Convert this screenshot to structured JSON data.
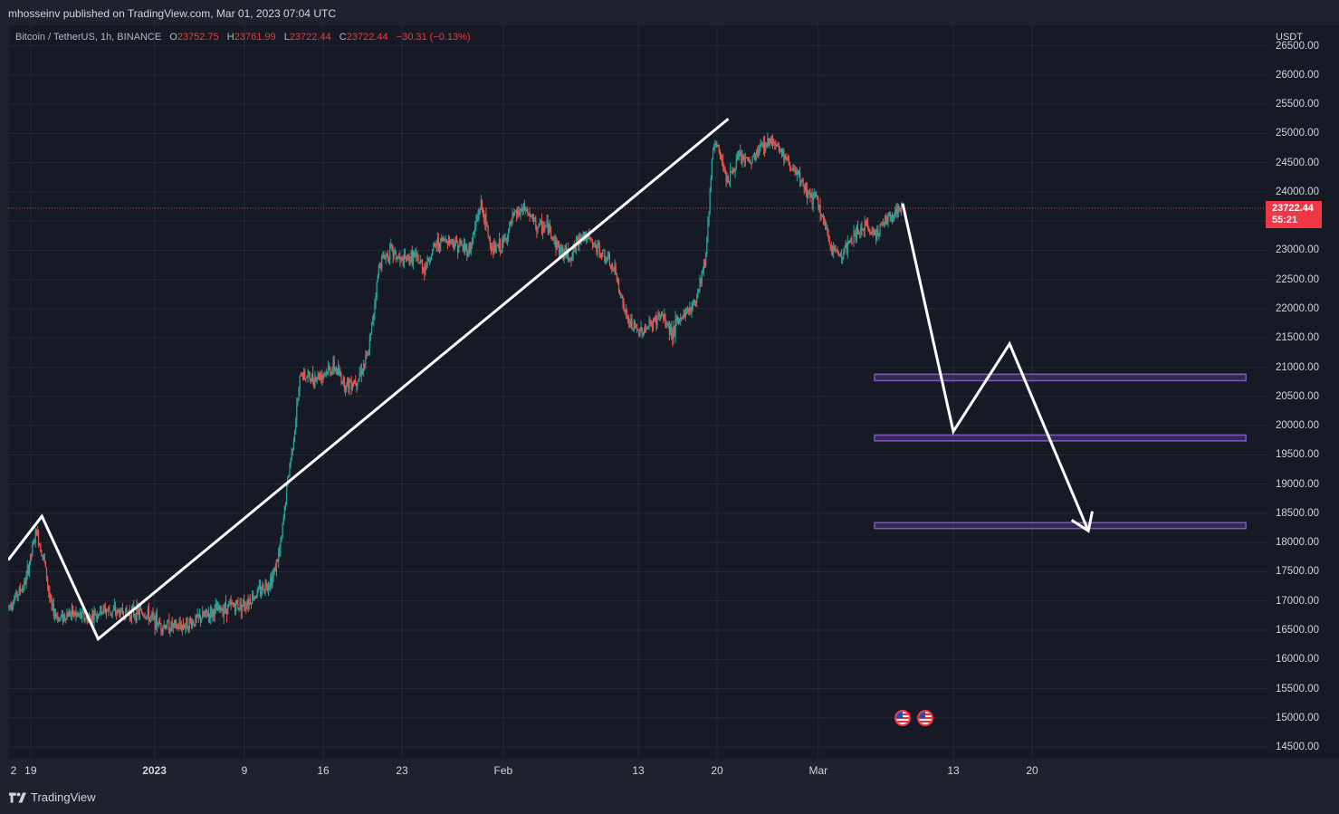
{
  "header": {
    "published_text": "mhosseinv published on TradingView.com, Mar 01, 2023 07:04 UTC"
  },
  "legend": {
    "symbol": "Bitcoin / TetherUS, 1h, BINANCE",
    "open_label": "O",
    "open": "23752.75",
    "high_label": "H",
    "high": "23761.99",
    "low_label": "L",
    "low": "23722.44",
    "close_label": "C",
    "close": "23722.44",
    "change": "−30.31 (−0.13%)"
  },
  "price_axis": {
    "currency": "USDT",
    "ticks": [
      "26500.00",
      "26000.00",
      "25500.00",
      "25000.00",
      "24500.00",
      "24000.00",
      "23500.00",
      "23000.00",
      "22500.00",
      "22000.00",
      "21500.00",
      "21000.00",
      "20500.00",
      "20000.00",
      "19500.00",
      "19000.00",
      "18500.00",
      "18000.00",
      "17500.00",
      "17000.00",
      "16500.00",
      "16000.00",
      "15500.00",
      "15000.00",
      "14500.00"
    ],
    "last_price": "23722.44",
    "countdown": "55:21"
  },
  "time_axis": {
    "ticks": [
      {
        "label": "2",
        "bold": false
      },
      {
        "label": "19",
        "bold": false
      },
      {
        "label": "2023",
        "bold": true
      },
      {
        "label": "9",
        "bold": false
      },
      {
        "label": "16",
        "bold": false
      },
      {
        "label": "23",
        "bold": false
      },
      {
        "label": "Feb",
        "bold": false
      },
      {
        "label": "13",
        "bold": false
      },
      {
        "label": "20",
        "bold": false
      },
      {
        "label": "Mar",
        "bold": false
      },
      {
        "label": "13",
        "bold": false
      },
      {
        "label": "20",
        "bold": false
      }
    ]
  },
  "footer": {
    "brand": "TradingView"
  },
  "colors": {
    "up": "#26a69a",
    "down": "#ef5350",
    "background": "#161a25",
    "grid": "#262a35",
    "drawing": "#ffffff",
    "zone": "#7e57c2",
    "last_price": "#f23645"
  },
  "chart_data": {
    "type": "candlestick",
    "title": "Bitcoin / TetherUS, 1h, BINANCE",
    "x_unit": "days",
    "x_axis_ticks": [
      {
        "label": "2",
        "day": 0
      },
      {
        "label": "19",
        "day": 2
      },
      {
        "label": "2023",
        "day": 13
      },
      {
        "label": "9",
        "day": 21
      },
      {
        "label": "16",
        "day": 28
      },
      {
        "label": "23",
        "day": 35
      },
      {
        "label": "Feb",
        "day": 44
      },
      {
        "label": "13",
        "day": 56
      },
      {
        "label": "20",
        "day": 63
      },
      {
        "label": "Mar",
        "day": 72
      },
      {
        "label": "13",
        "day": 84
      },
      {
        "label": "20",
        "day": 91
      }
    ],
    "x_range": [
      0,
      112
    ],
    "y_range": [
      14300,
      26850
    ],
    "ylabel": "USDT",
    "price_path": [
      [
        0,
        16900
      ],
      [
        1.5,
        17300
      ],
      [
        2.5,
        18200
      ],
      [
        3.2,
        17700
      ],
      [
        3.8,
        16900
      ],
      [
        4.5,
        16700
      ],
      [
        5.5,
        16800
      ],
      [
        7,
        16700
      ],
      [
        8.5,
        16850
      ],
      [
        10,
        16800
      ],
      [
        12,
        16800
      ],
      [
        13.5,
        16600
      ],
      [
        15,
        16550
      ],
      [
        16.5,
        16650
      ],
      [
        18,
        16800
      ],
      [
        19.5,
        16900
      ],
      [
        21,
        16950
      ],
      [
        22.5,
        17200
      ],
      [
        23.5,
        17400
      ],
      [
        24.2,
        17900
      ],
      [
        24.8,
        19000
      ],
      [
        25.5,
        20000
      ],
      [
        26,
        20900
      ],
      [
        27,
        20800
      ],
      [
        28,
        20900
      ],
      [
        29,
        21000
      ],
      [
        30,
        20700
      ],
      [
        31,
        20800
      ],
      [
        32,
        21200
      ],
      [
        33,
        22800
      ],
      [
        34,
        23000
      ],
      [
        35,
        22800
      ],
      [
        36,
        22900
      ],
      [
        37,
        22700
      ],
      [
        38,
        23100
      ],
      [
        39,
        23200
      ],
      [
        40,
        23100
      ],
      [
        41,
        23000
      ],
      [
        42,
        23800
      ],
      [
        43,
        23000
      ],
      [
        44,
        23100
      ],
      [
        45,
        23600
      ],
      [
        46,
        23700
      ],
      [
        47,
        23400
      ],
      [
        48,
        23400
      ],
      [
        49,
        23000
      ],
      [
        50,
        22900
      ],
      [
        51,
        23300
      ],
      [
        52,
        23100
      ],
      [
        53,
        22900
      ],
      [
        54,
        22600
      ],
      [
        55,
        21800
      ],
      [
        56,
        21600
      ],
      [
        57,
        21700
      ],
      [
        58,
        21900
      ],
      [
        59,
        21600
      ],
      [
        60,
        21900
      ],
      [
        61,
        22100
      ],
      [
        62,
        22900
      ],
      [
        62.6,
        24700
      ],
      [
        63,
        24800
      ],
      [
        64,
        24200
      ],
      [
        65,
        24600
      ],
      [
        66,
        24500
      ],
      [
        67,
        24800
      ],
      [
        68,
        24900
      ],
      [
        69,
        24600
      ],
      [
        70,
        24300
      ],
      [
        71,
        24000
      ],
      [
        72,
        23800
      ],
      [
        73,
        23100
      ],
      [
        74,
        22900
      ],
      [
        75,
        23200
      ],
      [
        76,
        23400
      ],
      [
        77,
        23300
      ],
      [
        78,
        23500
      ],
      [
        79,
        23700
      ],
      [
        79.5,
        23722
      ]
    ],
    "last_price": 23722.44,
    "drawings": {
      "trend_polyline": [
        [
          0,
          17700
        ],
        [
          3,
          18450
        ],
        [
          8,
          16350
        ],
        [
          64,
          25250
        ]
      ],
      "projection_path": [
        [
          79.5,
          23800
        ],
        [
          84,
          19900
        ],
        [
          89,
          21400
        ],
        [
          96,
          18200
        ]
      ],
      "arrow_head_tip": [
        96,
        18200
      ],
      "zones": [
        {
          "x_start": 77,
          "x_end": 110,
          "y_low": 20770,
          "y_high": 20880
        },
        {
          "x_start": 77,
          "x_end": 110,
          "y_low": 19740,
          "y_high": 19840
        },
        {
          "x_start": 77,
          "x_end": 110,
          "y_low": 18240,
          "y_high": 18340
        }
      ],
      "event_markers_day": [
        79.5,
        81.5
      ]
    }
  }
}
